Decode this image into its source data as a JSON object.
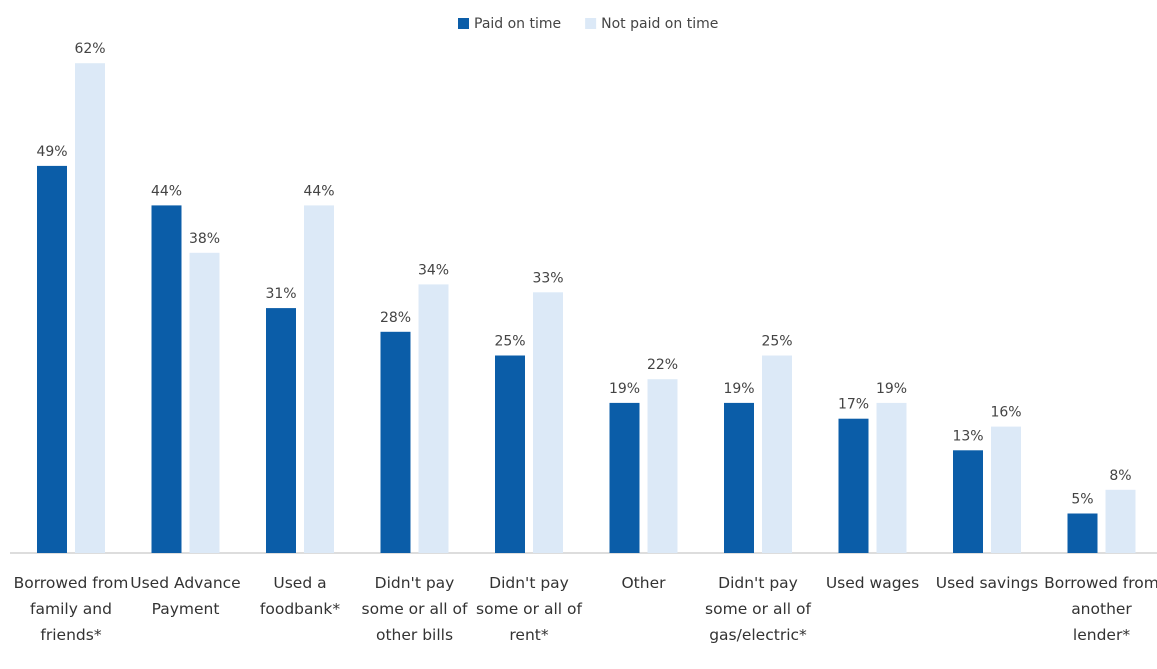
{
  "chart_data": {
    "type": "bar",
    "categories": [
      "Borrowed from family and friends*",
      "Used Advance Payment",
      "Used a foodbank*",
      "Didn't pay some or all of other bills",
      "Didn't pay some or all of rent*",
      "Other",
      "Didn't pay some or all of gas/electric*",
      "Used wages",
      "Used savings",
      "Borrowed from another lender*"
    ],
    "series": [
      {
        "name": "Paid on time",
        "color": "#0b5da8",
        "values": [
          49,
          44,
          31,
          28,
          25,
          19,
          19,
          17,
          13,
          5
        ],
        "value_labels": [
          "49%",
          "44%",
          "31%",
          "28%",
          "25%",
          "19%",
          "19%",
          "17%",
          "13%",
          "5%"
        ]
      },
      {
        "name": "Not paid on time",
        "color": "#dce9f7",
        "values": [
          62,
          38,
          44,
          34,
          33,
          22,
          25,
          19,
          16,
          8
        ],
        "value_labels": [
          "62%",
          "38%",
          "44%",
          "34%",
          "33%",
          "22%",
          "25%",
          "19%",
          "16%",
          "8%"
        ]
      }
    ],
    "legend": "top"
  }
}
